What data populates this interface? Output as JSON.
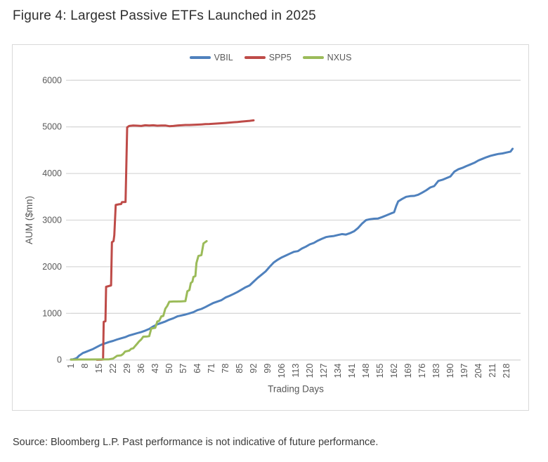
{
  "page": {
    "title": "Figure 4: Largest Passive ETFs Launched in 2025",
    "source": "Source: Bloomberg L.P. Past performance is not indicative of future performance."
  },
  "colors": {
    "grid": "#d9d9d9",
    "axis_text": "#595959",
    "panel_border": "#d9d9d9",
    "vbil_blue": "#4F81BD",
    "spp5_red": "#BE4B48",
    "nxus_green": "#9BBB59"
  },
  "chart_data": {
    "type": "line",
    "title": "",
    "xlabel": "Trading Days",
    "ylabel": "AUM ($mn)",
    "xlim": [
      1,
      225
    ],
    "ylim": [
      0,
      6000
    ],
    "y_ticks": [
      0,
      1000,
      2000,
      3000,
      4000,
      5000,
      6000
    ],
    "x_ticks": [
      1,
      8,
      15,
      22,
      29,
      36,
      43,
      50,
      57,
      64,
      71,
      78,
      85,
      92,
      99,
      106,
      113,
      120,
      127,
      134,
      141,
      148,
      155,
      162,
      169,
      176,
      183,
      190,
      197,
      204,
      211,
      218
    ],
    "grid": "horizontal",
    "legend_position": "top-center",
    "series": [
      {
        "name": "VBIL",
        "color": "#4F81BD",
        "points": [
          [
            1,
            10
          ],
          [
            2,
            15
          ],
          [
            3,
            25
          ],
          [
            4,
            45
          ],
          [
            5,
            90
          ],
          [
            6,
            120
          ],
          [
            7,
            150
          ],
          [
            8,
            165
          ],
          [
            10,
            200
          ],
          [
            12,
            235
          ],
          [
            14,
            280
          ],
          [
            16,
            325
          ],
          [
            18,
            355
          ],
          [
            20,
            385
          ],
          [
            22,
            410
          ],
          [
            24,
            440
          ],
          [
            26,
            465
          ],
          [
            28,
            490
          ],
          [
            30,
            525
          ],
          [
            32,
            550
          ],
          [
            34,
            575
          ],
          [
            36,
            600
          ],
          [
            38,
            630
          ],
          [
            40,
            665
          ],
          [
            42,
            720
          ],
          [
            44,
            765
          ],
          [
            46,
            795
          ],
          [
            48,
            825
          ],
          [
            50,
            865
          ],
          [
            52,
            895
          ],
          [
            54,
            935
          ],
          [
            56,
            955
          ],
          [
            58,
            975
          ],
          [
            60,
            1000
          ],
          [
            62,
            1025
          ],
          [
            64,
            1070
          ],
          [
            66,
            1095
          ],
          [
            68,
            1135
          ],
          [
            70,
            1180
          ],
          [
            72,
            1225
          ],
          [
            74,
            1255
          ],
          [
            76,
            1285
          ],
          [
            78,
            1340
          ],
          [
            80,
            1375
          ],
          [
            82,
            1415
          ],
          [
            84,
            1460
          ],
          [
            86,
            1510
          ],
          [
            88,
            1560
          ],
          [
            90,
            1600
          ],
          [
            92,
            1680
          ],
          [
            94,
            1760
          ],
          [
            96,
            1830
          ],
          [
            98,
            1900
          ],
          [
            100,
            2000
          ],
          [
            102,
            2090
          ],
          [
            104,
            2150
          ],
          [
            106,
            2200
          ],
          [
            108,
            2240
          ],
          [
            110,
            2280
          ],
          [
            112,
            2320
          ],
          [
            114,
            2335
          ],
          [
            116,
            2390
          ],
          [
            118,
            2430
          ],
          [
            120,
            2480
          ],
          [
            122,
            2510
          ],
          [
            124,
            2560
          ],
          [
            126,
            2600
          ],
          [
            128,
            2635
          ],
          [
            130,
            2650
          ],
          [
            132,
            2660
          ],
          [
            134,
            2680
          ],
          [
            136,
            2700
          ],
          [
            138,
            2690
          ],
          [
            140,
            2720
          ],
          [
            142,
            2760
          ],
          [
            144,
            2830
          ],
          [
            146,
            2925
          ],
          [
            148,
            3000
          ],
          [
            150,
            3020
          ],
          [
            152,
            3030
          ],
          [
            154,
            3035
          ],
          [
            156,
            3065
          ],
          [
            158,
            3100
          ],
          [
            160,
            3135
          ],
          [
            162,
            3170
          ],
          [
            163,
            3300
          ],
          [
            164,
            3400
          ],
          [
            166,
            3455
          ],
          [
            168,
            3500
          ],
          [
            170,
            3515
          ],
          [
            172,
            3520
          ],
          [
            174,
            3545
          ],
          [
            176,
            3590
          ],
          [
            178,
            3640
          ],
          [
            180,
            3700
          ],
          [
            182,
            3730
          ],
          [
            184,
            3840
          ],
          [
            186,
            3865
          ],
          [
            188,
            3900
          ],
          [
            190,
            3935
          ],
          [
            192,
            4040
          ],
          [
            194,
            4090
          ],
          [
            196,
            4120
          ],
          [
            198,
            4160
          ],
          [
            200,
            4195
          ],
          [
            202,
            4230
          ],
          [
            204,
            4280
          ],
          [
            206,
            4315
          ],
          [
            208,
            4350
          ],
          [
            210,
            4380
          ],
          [
            212,
            4400
          ],
          [
            214,
            4420
          ],
          [
            216,
            4430
          ],
          [
            218,
            4450
          ],
          [
            220,
            4470
          ],
          [
            221,
            4530
          ]
        ]
      },
      {
        "name": "SPP5",
        "color": "#BE4B48",
        "points": [
          [
            14,
            5
          ],
          [
            16,
            8
          ],
          [
            17,
            10
          ],
          [
            17.3,
            820
          ],
          [
            18.2,
            830
          ],
          [
            18.5,
            1570
          ],
          [
            21,
            1600
          ],
          [
            21.4,
            2525
          ],
          [
            22.2,
            2550
          ],
          [
            22.6,
            2675
          ],
          [
            23.3,
            3325
          ],
          [
            25,
            3340
          ],
          [
            26,
            3345
          ],
          [
            26.4,
            3385
          ],
          [
            28.2,
            3390
          ],
          [
            29,
            4990
          ],
          [
            30,
            5020
          ],
          [
            32,
            5030
          ],
          [
            34,
            5025
          ],
          [
            36,
            5020
          ],
          [
            38,
            5035
          ],
          [
            40,
            5030
          ],
          [
            42,
            5035
          ],
          [
            44,
            5025
          ],
          [
            46,
            5030
          ],
          [
            48,
            5030
          ],
          [
            50,
            5015
          ],
          [
            52,
            5020
          ],
          [
            54,
            5030
          ],
          [
            56,
            5035
          ],
          [
            58,
            5040
          ],
          [
            60,
            5040
          ],
          [
            62,
            5045
          ],
          [
            64,
            5048
          ],
          [
            66,
            5052
          ],
          [
            68,
            5058
          ],
          [
            70,
            5062
          ],
          [
            72,
            5068
          ],
          [
            74,
            5072
          ],
          [
            76,
            5078
          ],
          [
            78,
            5085
          ],
          [
            80,
            5092
          ],
          [
            82,
            5100
          ],
          [
            84,
            5105
          ],
          [
            86,
            5115
          ],
          [
            88,
            5122
          ],
          [
            90,
            5130
          ],
          [
            92,
            5140
          ]
        ]
      },
      {
        "name": "NXUS",
        "color": "#9BBB59",
        "points": [
          [
            1,
            8
          ],
          [
            5,
            10
          ],
          [
            10,
            10
          ],
          [
            15,
            12
          ],
          [
            20,
            15
          ],
          [
            22,
            30
          ],
          [
            23,
            60
          ],
          [
            24,
            90
          ],
          [
            26,
            100
          ],
          [
            27,
            130
          ],
          [
            28,
            180
          ],
          [
            30,
            200
          ],
          [
            31,
            240
          ],
          [
            32,
            250
          ],
          [
            33,
            300
          ],
          [
            34,
            350
          ],
          [
            35,
            400
          ],
          [
            36,
            440
          ],
          [
            37,
            500
          ],
          [
            39,
            505
          ],
          [
            40,
            510
          ],
          [
            41,
            675
          ],
          [
            43,
            690
          ],
          [
            44,
            825
          ],
          [
            45,
            840
          ],
          [
            46,
            935
          ],
          [
            47,
            945
          ],
          [
            48,
            1100
          ],
          [
            49,
            1160
          ],
          [
            50,
            1250
          ],
          [
            52,
            1255
          ],
          [
            54,
            1255
          ],
          [
            56,
            1258
          ],
          [
            58,
            1262
          ],
          [
            59,
            1475
          ],
          [
            60,
            1500
          ],
          [
            60.7,
            1650
          ],
          [
            61.5,
            1680
          ],
          [
            62,
            1780
          ],
          [
            63,
            1800
          ],
          [
            63.5,
            2080
          ],
          [
            64.5,
            2230
          ],
          [
            66,
            2250
          ],
          [
            67,
            2500
          ],
          [
            68,
            2530
          ],
          [
            68.6,
            2550
          ]
        ]
      }
    ]
  }
}
